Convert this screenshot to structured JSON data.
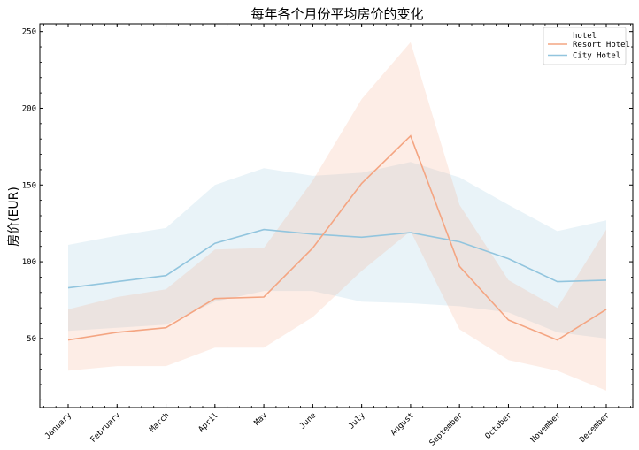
{
  "chart_data": {
    "type": "line",
    "title": "每年各个月份平均房价的变化",
    "xlabel": "",
    "ylabel": "房价(EUR)",
    "categories": [
      "January",
      "February",
      "March",
      "April",
      "May",
      "June",
      "July",
      "August",
      "September",
      "October",
      "November",
      "December"
    ],
    "ylim": [
      5,
      255
    ],
    "yticks": [
      50,
      100,
      150,
      200,
      250
    ],
    "legend": {
      "title": "hotel",
      "placement": "top-right"
    },
    "series": [
      {
        "name": "Resort Hotel",
        "color": "#f4a582",
        "values": [
          49,
          54,
          57,
          76,
          77,
          109,
          151,
          182,
          97,
          62,
          49,
          69
        ],
        "band_low": [
          29,
          32,
          32,
          44,
          44,
          64,
          94,
          120,
          56,
          36,
          29,
          16
        ],
        "band_high": [
          69,
          77,
          82,
          108,
          109,
          153,
          206,
          243,
          137,
          88,
          70,
          121
        ]
      },
      {
        "name": "City Hotel",
        "color": "#92c5de",
        "values": [
          83,
          87,
          91,
          112,
          121,
          118,
          116,
          119,
          113,
          102,
          87,
          88
        ],
        "band_low": [
          55,
          57,
          59,
          74,
          81,
          81,
          74,
          73,
          71,
          67,
          54,
          50
        ],
        "band_high": [
          111,
          117,
          122,
          150,
          161,
          156,
          158,
          165,
          155,
          137,
          120,
          127
        ]
      }
    ]
  }
}
